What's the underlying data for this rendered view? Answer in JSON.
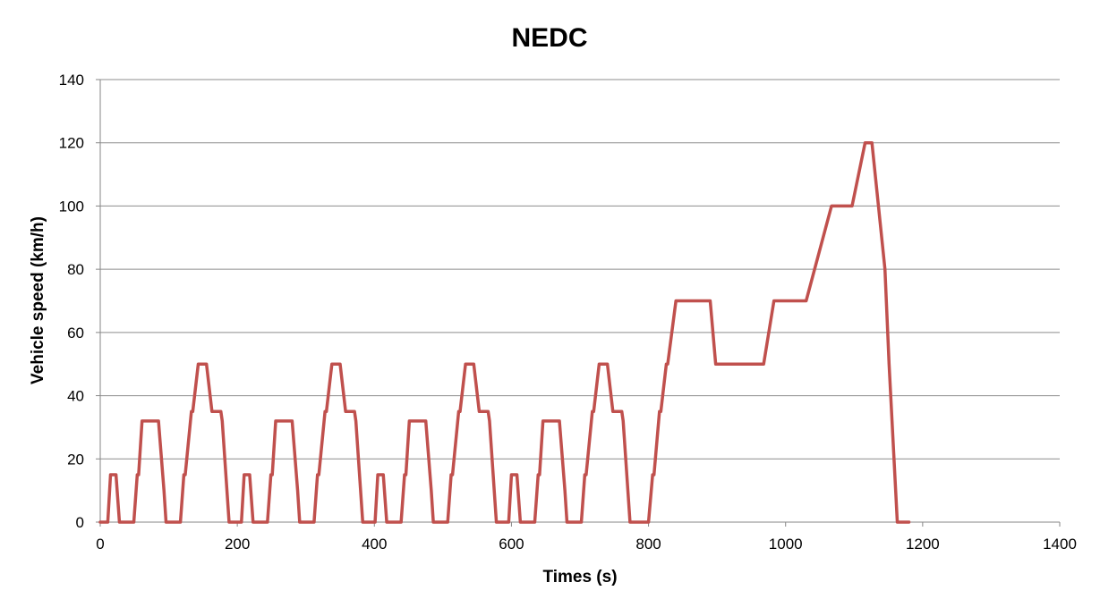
{
  "chart_data": {
    "type": "line",
    "title": "NEDC",
    "xlabel": "Times (s)",
    "ylabel": "Vehicle speed (km/h)",
    "xlim": [
      0,
      1400
    ],
    "ylim": [
      0,
      140
    ],
    "x_ticks": [
      0,
      200,
      400,
      600,
      800,
      1000,
      1200,
      1400
    ],
    "y_ticks": [
      0,
      20,
      40,
      60,
      80,
      100,
      120,
      140
    ],
    "x_tick_labels": [
      "0",
      "200",
      "400",
      "600",
      "800",
      "1000",
      "1200",
      "1400"
    ],
    "y_tick_labels": [
      "0",
      "20",
      "40",
      "60",
      "80",
      "100",
      "120",
      "140"
    ],
    "grid": "horizontal",
    "legend": "none",
    "colors": {
      "series": "#C0504D",
      "grid": "#8C8C8C",
      "axis": "#868686"
    },
    "series": [
      {
        "points": [
          [
            0,
            0
          ],
          [
            11,
            0
          ],
          [
            15,
            15
          ],
          [
            23,
            15
          ],
          [
            28,
            0
          ],
          [
            49,
            0
          ],
          [
            54,
            15
          ],
          [
            56,
            15
          ],
          [
            61,
            32
          ],
          [
            85,
            32
          ],
          [
            93,
            10
          ],
          [
            96,
            0
          ],
          [
            117,
            0
          ],
          [
            122,
            15
          ],
          [
            124,
            15
          ],
          [
            133,
            35
          ],
          [
            135,
            35
          ],
          [
            143,
            50
          ],
          [
            155,
            50
          ],
          [
            163,
            35
          ],
          [
            176,
            35
          ],
          [
            178,
            32
          ],
          [
            188,
            0
          ],
          [
            206,
            0
          ],
          [
            210,
            15
          ],
          [
            218,
            15
          ],
          [
            223,
            0
          ],
          [
            244,
            0
          ],
          [
            249,
            15
          ],
          [
            251,
            15
          ],
          [
            256,
            32
          ],
          [
            280,
            32
          ],
          [
            288,
            10
          ],
          [
            291,
            0
          ],
          [
            312,
            0
          ],
          [
            317,
            15
          ],
          [
            319,
            15
          ],
          [
            328,
            35
          ],
          [
            330,
            35
          ],
          [
            338,
            50
          ],
          [
            350,
            50
          ],
          [
            358,
            35
          ],
          [
            371,
            35
          ],
          [
            373,
            32
          ],
          [
            383,
            0
          ],
          [
            401,
            0
          ],
          [
            405,
            15
          ],
          [
            413,
            15
          ],
          [
            418,
            0
          ],
          [
            439,
            0
          ],
          [
            444,
            15
          ],
          [
            446,
            15
          ],
          [
            451,
            32
          ],
          [
            475,
            32
          ],
          [
            483,
            10
          ],
          [
            486,
            0
          ],
          [
            507,
            0
          ],
          [
            512,
            15
          ],
          [
            514,
            15
          ],
          [
            523,
            35
          ],
          [
            525,
            35
          ],
          [
            533,
            50
          ],
          [
            545,
            50
          ],
          [
            553,
            35
          ],
          [
            566,
            35
          ],
          [
            568,
            32
          ],
          [
            578,
            0
          ],
          [
            596,
            0
          ],
          [
            600,
            15
          ],
          [
            608,
            15
          ],
          [
            613,
            0
          ],
          [
            634,
            0
          ],
          [
            639,
            15
          ],
          [
            641,
            15
          ],
          [
            646,
            32
          ],
          [
            670,
            32
          ],
          [
            678,
            10
          ],
          [
            681,
            0
          ],
          [
            702,
            0
          ],
          [
            707,
            15
          ],
          [
            709,
            15
          ],
          [
            718,
            35
          ],
          [
            720,
            35
          ],
          [
            728,
            50
          ],
          [
            740,
            50
          ],
          [
            748,
            35
          ],
          [
            761,
            35
          ],
          [
            763,
            32
          ],
          [
            773,
            0
          ],
          [
            800,
            0
          ],
          [
            806,
            15
          ],
          [
            808,
            15
          ],
          [
            816,
            35
          ],
          [
            818,
            35
          ],
          [
            826,
            50
          ],
          [
            828,
            50
          ],
          [
            840,
            70
          ],
          [
            890,
            70
          ],
          [
            898,
            50
          ],
          [
            968,
            50
          ],
          [
            983,
            70
          ],
          [
            1030,
            70
          ],
          [
            1067,
            100
          ],
          [
            1097,
            100
          ],
          [
            1116,
            120
          ],
          [
            1126,
            120
          ],
          [
            1145,
            80
          ],
          [
            1151,
            50
          ],
          [
            1163,
            0
          ],
          [
            1180,
            0
          ]
        ]
      }
    ]
  }
}
